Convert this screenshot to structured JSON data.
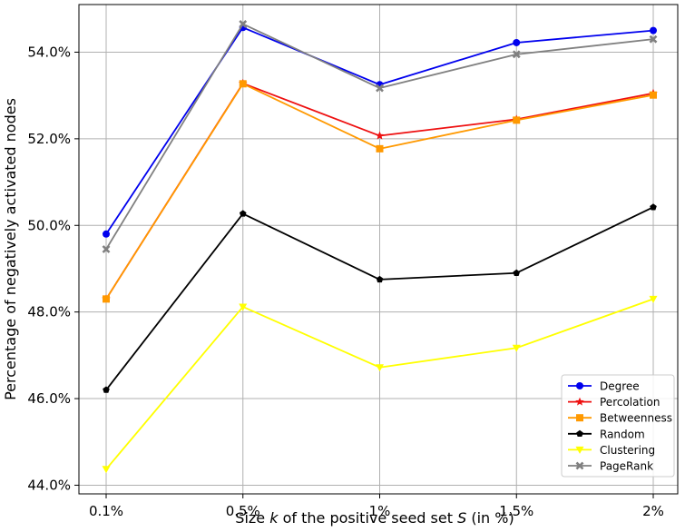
{
  "chart_data": {
    "type": "line",
    "title": "",
    "xlabel_parts": [
      "Size ",
      "k",
      " of the positive seed set ",
      "S",
      " (in %)"
    ],
    "ylabel": "Percentage of negatively activated nodes",
    "categories": [
      "0.1%",
      "0.5%",
      "1%",
      "1.5%",
      "2%"
    ],
    "y_ticks": [
      44.0,
      46.0,
      48.0,
      50.0,
      52.0,
      54.0
    ],
    "y_tick_labels": [
      "44.0%",
      "46.0%",
      "48.0%",
      "50.0%",
      "52.0%",
      "54.0%"
    ],
    "ylim": [
      43.8,
      55.1
    ],
    "grid": true,
    "legend_position": "lower-right",
    "series": [
      {
        "name": "Degree",
        "color": "#0000ee",
        "marker": "circle",
        "values": [
          49.8,
          54.57,
          53.25,
          54.22,
          54.5
        ]
      },
      {
        "name": "Percolation",
        "color": "#ee1111",
        "marker": "star",
        "values": [
          48.3,
          53.28,
          52.07,
          52.45,
          53.05
        ]
      },
      {
        "name": "Betweenness",
        "color": "#ff9900",
        "marker": "square",
        "values": [
          48.3,
          53.27,
          51.77,
          52.43,
          53.01
        ]
      },
      {
        "name": "Random",
        "color": "#000000",
        "marker": "pentagon",
        "values": [
          46.2,
          50.27,
          48.75,
          48.9,
          50.42
        ]
      },
      {
        "name": "Clustering",
        "color": "#ffff00",
        "marker": "triangle-down",
        "values": [
          44.37,
          48.12,
          46.72,
          47.17,
          48.3
        ]
      },
      {
        "name": "PageRank",
        "color": "#808080",
        "marker": "x",
        "values": [
          49.45,
          54.65,
          53.17,
          53.95,
          54.3
        ]
      }
    ]
  }
}
